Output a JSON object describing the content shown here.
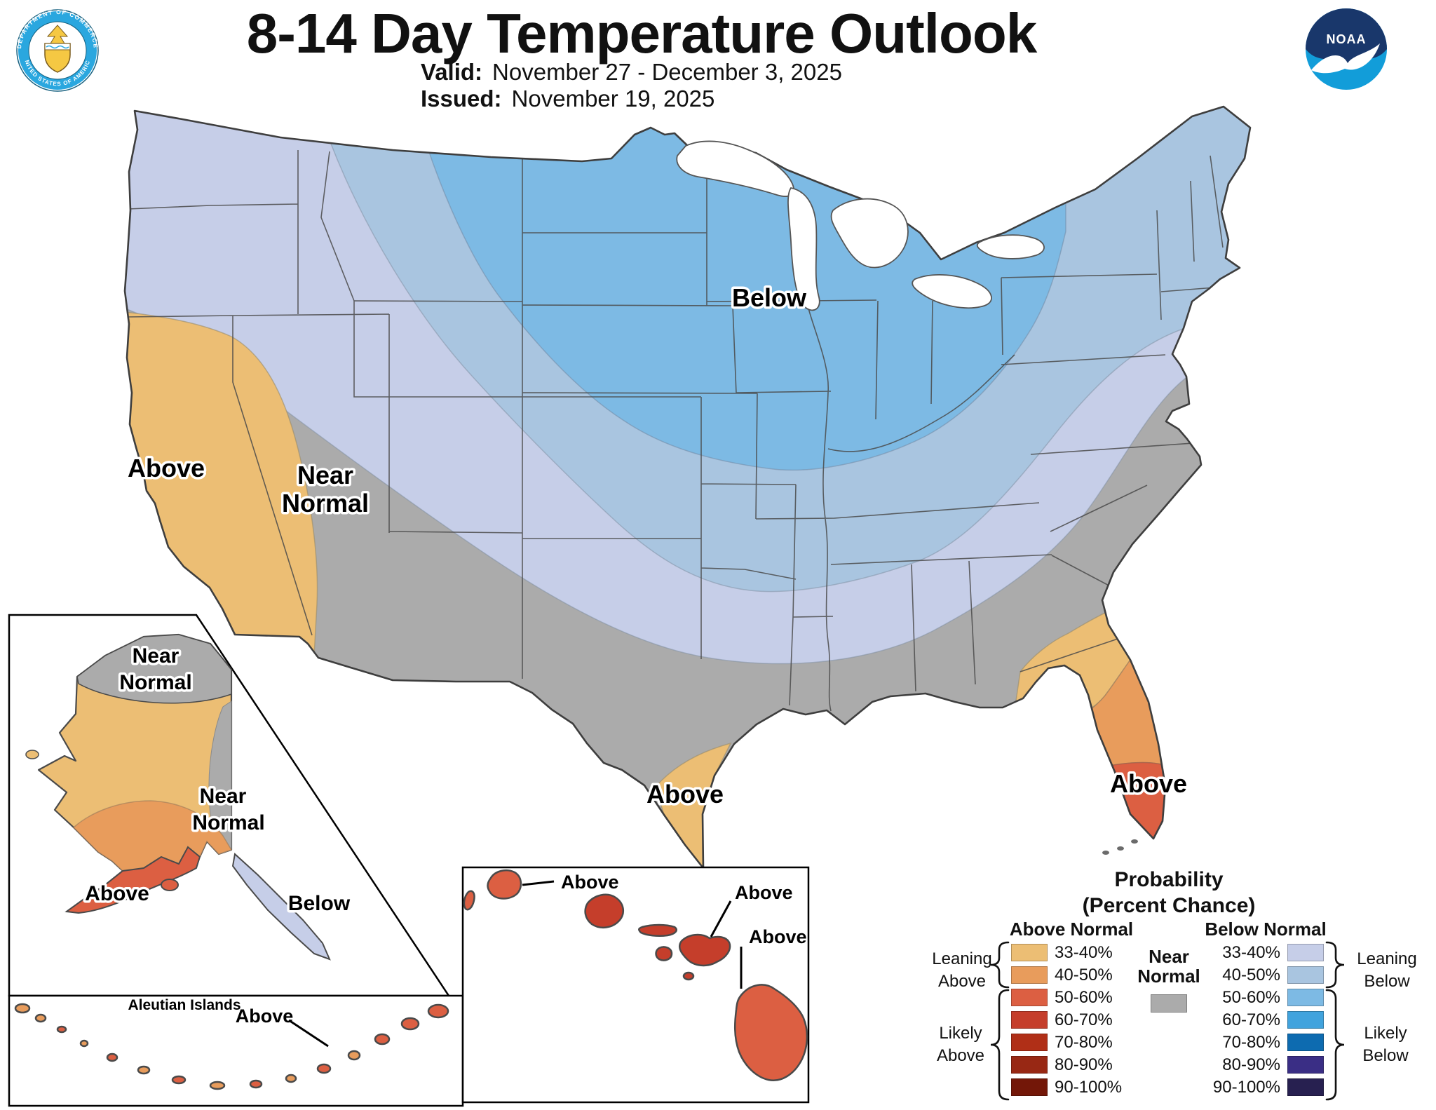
{
  "header": {
    "title": "8-14 Day Temperature Outlook",
    "valid_label": "Valid:",
    "valid_value": "November 27 - December 3, 2025",
    "issued_label": "Issued:",
    "issued_value": "November 19, 2025"
  },
  "logos": {
    "noaa": "NOAA",
    "commerce_top": "DEPARTMENT OF COMMERCE",
    "commerce_bottom": "UNITED STATES OF AMERICA"
  },
  "map": {
    "labels": {
      "conus_below": "Below",
      "conus_near_line1": "Near",
      "conus_near_line2": "Normal",
      "conus_above_west": "Above",
      "conus_above_tx": "Above",
      "conus_above_fl": "Above"
    },
    "alaska": {
      "near_north_line1": "Near",
      "near_north_line2": "Normal",
      "near_east_line1": "Near",
      "near_east_line2": "Normal",
      "above": "Above",
      "below": "Below"
    },
    "aleutian": {
      "title": "Aleutian Islands",
      "above": "Above"
    },
    "hawaii": {
      "above_kauai": "Above",
      "above_maui": "Above",
      "above_big_island": "Above"
    }
  },
  "legend": {
    "title_line1": "Probability",
    "title_line2": "(Percent Chance)",
    "above_header": "Above Normal",
    "below_header": "Below Normal",
    "near_line1": "Near",
    "near_line2": "Normal",
    "ranges": [
      "33-40%",
      "40-50%",
      "50-60%",
      "60-70%",
      "70-80%",
      "80-90%",
      "90-100%"
    ],
    "above_colors": [
      "#ECBE74",
      "#E89C5C",
      "#DC5F42",
      "#C53E2B",
      "#B02F17",
      "#982814",
      "#731708"
    ],
    "below_colors": [
      "#C6CEE8",
      "#A9C5E0",
      "#7DBAE4",
      "#41A3DD",
      "#0D6BB0",
      "#3A2E85",
      "#272050"
    ],
    "groups": {
      "leaning_above_1": "Leaning",
      "leaning_above_2": "Above",
      "likely_above_1": "Likely",
      "likely_above_2": "Above",
      "leaning_below_1": "Leaning",
      "leaning_below_2": "Below",
      "likely_below_1": "Likely",
      "likely_below_2": "Below"
    }
  },
  "colors": {
    "near_normal": "#ABABAB",
    "above_33_40": "#ECBE74",
    "above_40_50": "#E89C5C",
    "above_50_60": "#DC5F42",
    "above_60_70": "#C53E2B",
    "below_33_40": "#C6CEE8",
    "below_40_50": "#A9C5E0",
    "below_50_60": "#7DBAE4",
    "outline": "#3E3E3E",
    "state_line": "#4A4A4A",
    "noaa_light_blue": "#129DD9",
    "noaa_dark_blue": "#19376B",
    "seal_blue": "#2AA7DF",
    "seal_gold": "#F5C843"
  }
}
